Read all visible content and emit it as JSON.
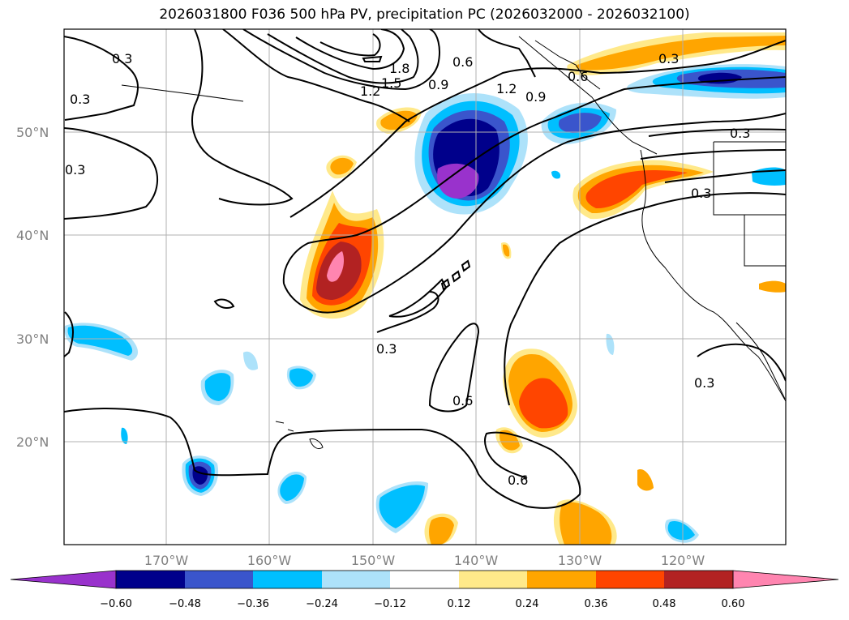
{
  "title": "2026031800 F036 500 hPa PV, precipitation PC (2026032000 - 2026032100)",
  "map": {
    "lat_labels": [
      "50°N",
      "40°N",
      "30°N",
      "20°N"
    ],
    "lon_labels": [
      "170°W",
      "160°W",
      "150°W",
      "140°W",
      "130°W",
      "120°W"
    ],
    "contour_labels": [
      "0.3",
      "0.3",
      "0.3",
      "0.6",
      "0.9",
      "1.2",
      "1.5",
      "1.8",
      "0.9",
      "1.2",
      "0.6",
      "0.3",
      "0.3",
      "0.3",
      "0.3",
      "0.6",
      "0.6",
      "0.3"
    ]
  },
  "colorbar": {
    "ticks": [
      "−0.60",
      "−0.48",
      "−0.36",
      "−0.24",
      "−0.12",
      "0.12",
      "0.24",
      "0.36",
      "0.48",
      "0.60"
    ],
    "colors": {
      "neg_extend": "#9932CC",
      "neg_060": "#00008B",
      "neg_048": "#3A55CC",
      "neg_036": "#00BFFF",
      "neg_024": "#ADE2FA",
      "neutral": "#FFFFFF",
      "pos_012": "#FFE98A",
      "pos_024": "#FFA500",
      "pos_036": "#FF4500",
      "pos_048": "#B22222",
      "pos_extend": "#FF85B0"
    }
  }
}
